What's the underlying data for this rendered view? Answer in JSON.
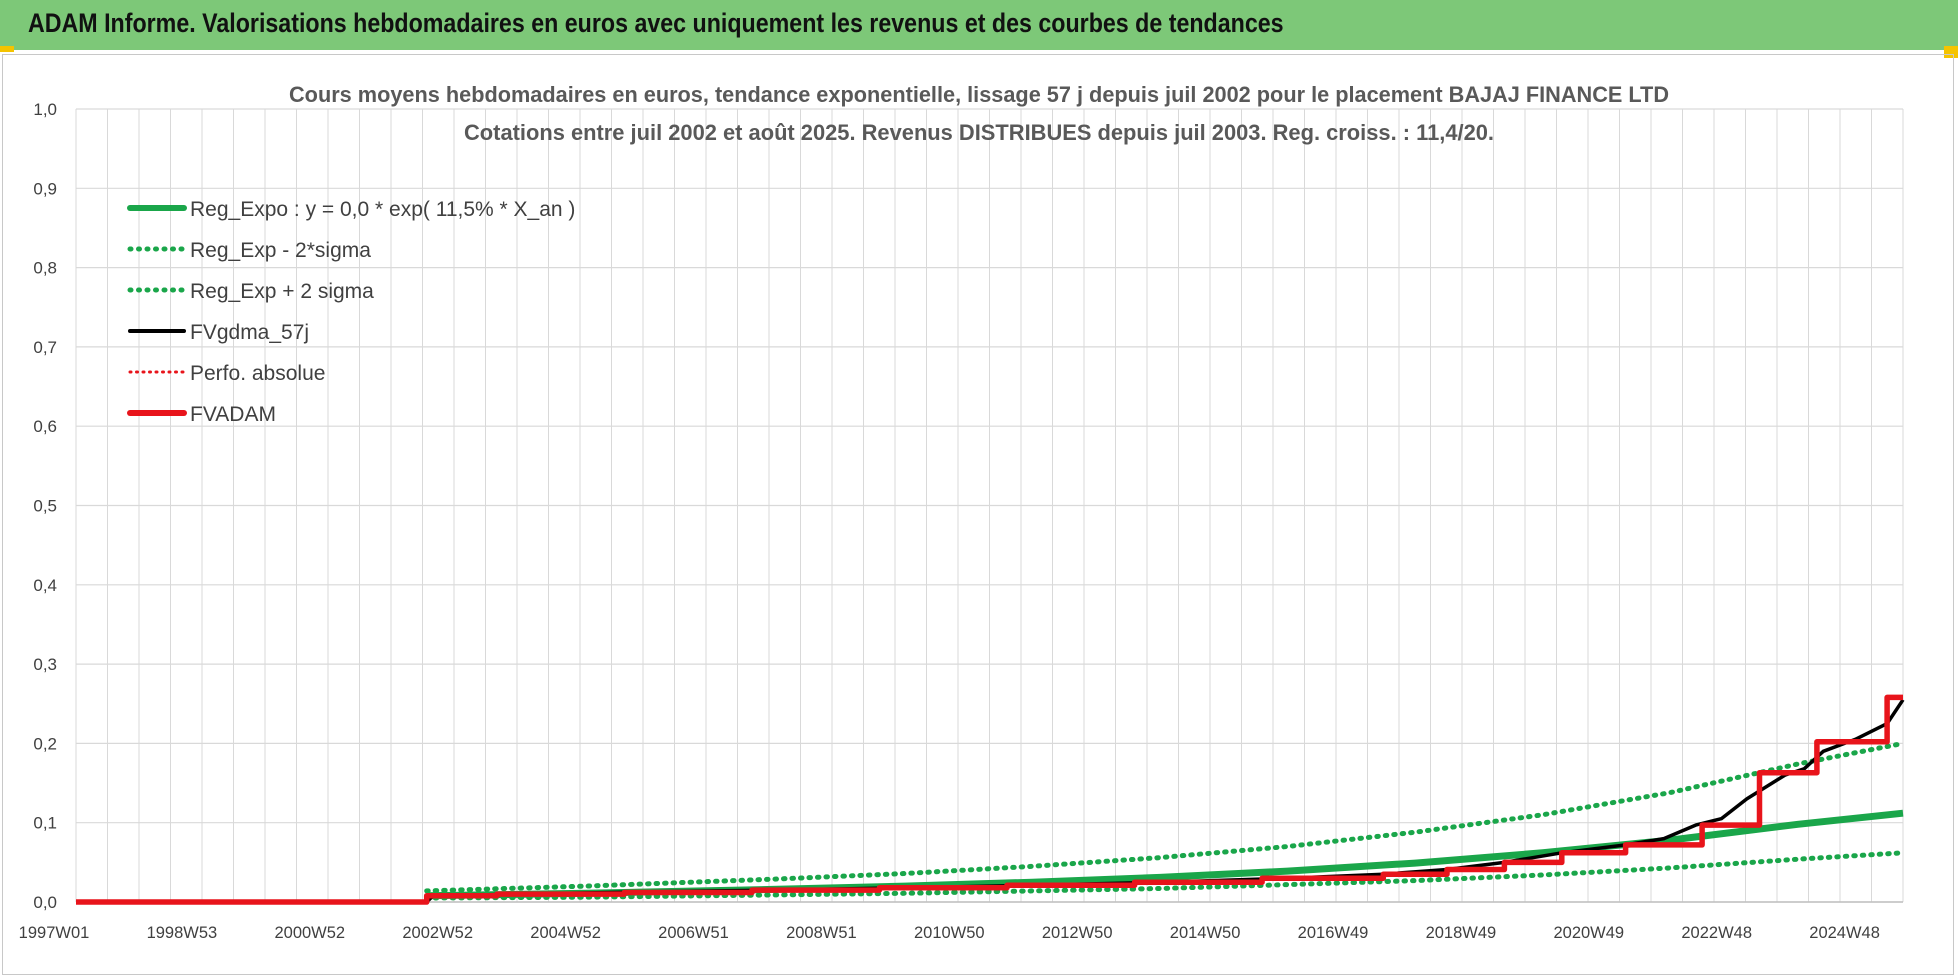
{
  "header": {
    "title": "ADAM Informe. Valorisations hebdomadaires en euros avec uniquement les revenus et des courbes de tendances"
  },
  "colors": {
    "header_bg": "#7dc878",
    "regression": "#1aa64a",
    "fv_gdma": "#000000",
    "fv_adam": "#e8141b",
    "perf": "#e8141b",
    "grid": "#d9d9d9"
  },
  "chart_data": {
    "type": "line",
    "title": [
      "Cours moyens hebdomadaires en euros, tendance exponentielle, lissage 57 j depuis juil 2002 pour le placement BAJAJ FINANCE LTD",
      "Cotations entre juil 2002 et août 2025. Revenus DISTRIBUES depuis juil 2003. Reg. croiss. : 11,4/20."
    ],
    "xlabel": "",
    "ylabel": "",
    "x_range": [
      1997.0,
      2025.65
    ],
    "ylim": [
      0,
      1.0
    ],
    "y_ticks": [
      "0,0",
      "0,1",
      "0,2",
      "0,3",
      "0,4",
      "0,5",
      "0,6",
      "0,7",
      "0,8",
      "0,9",
      "1,0"
    ],
    "x_tick_labels": [
      "1997W01",
      "1998W53",
      "2000W52",
      "2002W52",
      "2004W52",
      "2006W51",
      "2008W51",
      "2010W50",
      "2012W50",
      "2014W50",
      "2016W49",
      "2018W49",
      "2020W49",
      "2022W48",
      "2024W48"
    ],
    "grid": true,
    "legend_position": "top-left",
    "legend": [
      {
        "label": "Reg_Expo : y = 0,0 * exp( 11,5% *  X_an )",
        "style": "solid-thick",
        "color": "#1aa64a"
      },
      {
        "label": "Reg_Exp - 2*sigma",
        "style": "dotted",
        "color": "#1aa64a"
      },
      {
        "label": "Reg_Exp + 2 sigma",
        "style": "dotted",
        "color": "#1aa64a"
      },
      {
        "label": "FVgdma_57j",
        "style": "solid",
        "color": "#000000"
      },
      {
        "label": "Perfo. absolue",
        "style": "dotted-thin",
        "color": "#e8141b"
      },
      {
        "label": "FVADAM",
        "style": "solid-thick",
        "color": "#e8141b"
      }
    ],
    "series": [
      {
        "name": "Reg_Expo : y = 0,0 * exp( 11,5% *  X_an )",
        "x": [
          2002.5,
          2005,
          2008,
          2010,
          2012,
          2014,
          2016,
          2018,
          2020,
          2022,
          2024,
          2025.65
        ],
        "y": [
          0.008,
          0.011,
          0.016,
          0.02,
          0.025,
          0.031,
          0.039,
          0.049,
          0.062,
          0.078,
          0.098,
          0.112
        ]
      },
      {
        "name": "Reg_Exp - 2*sigma",
        "x": [
          2002.5,
          2005,
          2008,
          2010,
          2012,
          2014,
          2016,
          2018,
          2020,
          2022,
          2024,
          2025.65
        ],
        "y": [
          0.005,
          0.006,
          0.009,
          0.011,
          0.014,
          0.017,
          0.022,
          0.027,
          0.034,
          0.043,
          0.054,
          0.062
        ]
      },
      {
        "name": "Reg_Exp + 2 sigma",
        "x": [
          2002.5,
          2005,
          2008,
          2010,
          2012,
          2014,
          2016,
          2018,
          2020,
          2022,
          2024,
          2025.65
        ],
        "y": [
          0.014,
          0.02,
          0.029,
          0.036,
          0.045,
          0.056,
          0.07,
          0.088,
          0.11,
          0.138,
          0.174,
          0.2
        ]
      },
      {
        "name": "FVgdma_57j",
        "x": [
          1997.0,
          2002.5,
          2002.6,
          2004,
          2006,
          2008,
          2010,
          2012,
          2014,
          2016,
          2017.5,
          2018.5,
          2019.4,
          2020.3,
          2021.3,
          2021.9,
          2022.4,
          2022.8,
          2023.2,
          2023.8,
          2024.1,
          2024.4,
          2024.9,
          2025.4,
          2025.65
        ],
        "y": [
          0,
          0,
          0.008,
          0.01,
          0.013,
          0.015,
          0.018,
          0.021,
          0.025,
          0.03,
          0.035,
          0.041,
          0.05,
          0.062,
          0.072,
          0.08,
          0.097,
          0.105,
          0.13,
          0.16,
          0.168,
          0.19,
          0.205,
          0.225,
          0.255
        ]
      },
      {
        "name": "FVADAM",
        "x": [
          1997.0,
          2002.5,
          2002.5,
          2003.6,
          2003.6,
          2005.6,
          2005.6,
          2007.6,
          2007.6,
          2009.6,
          2009.6,
          2011.6,
          2011.6,
          2013.6,
          2013.6,
          2015.6,
          2015.6,
          2017.5,
          2017.5,
          2018.5,
          2018.5,
          2019.4,
          2019.4,
          2020.3,
          2020.3,
          2021.3,
          2021.3,
          2022.5,
          2022.5,
          2023.4,
          2023.4,
          2024.3,
          2024.3,
          2025.4,
          2025.4,
          2025.65
        ],
        "y": [
          0,
          0,
          0.008,
          0.008,
          0.01,
          0.01,
          0.012,
          0.012,
          0.015,
          0.015,
          0.018,
          0.018,
          0.021,
          0.021,
          0.025,
          0.025,
          0.03,
          0.03,
          0.035,
          0.035,
          0.041,
          0.041,
          0.05,
          0.05,
          0.062,
          0.062,
          0.072,
          0.072,
          0.097,
          0.097,
          0.163,
          0.163,
          0.202,
          0.202,
          0.258,
          0.258
        ]
      }
    ]
  }
}
